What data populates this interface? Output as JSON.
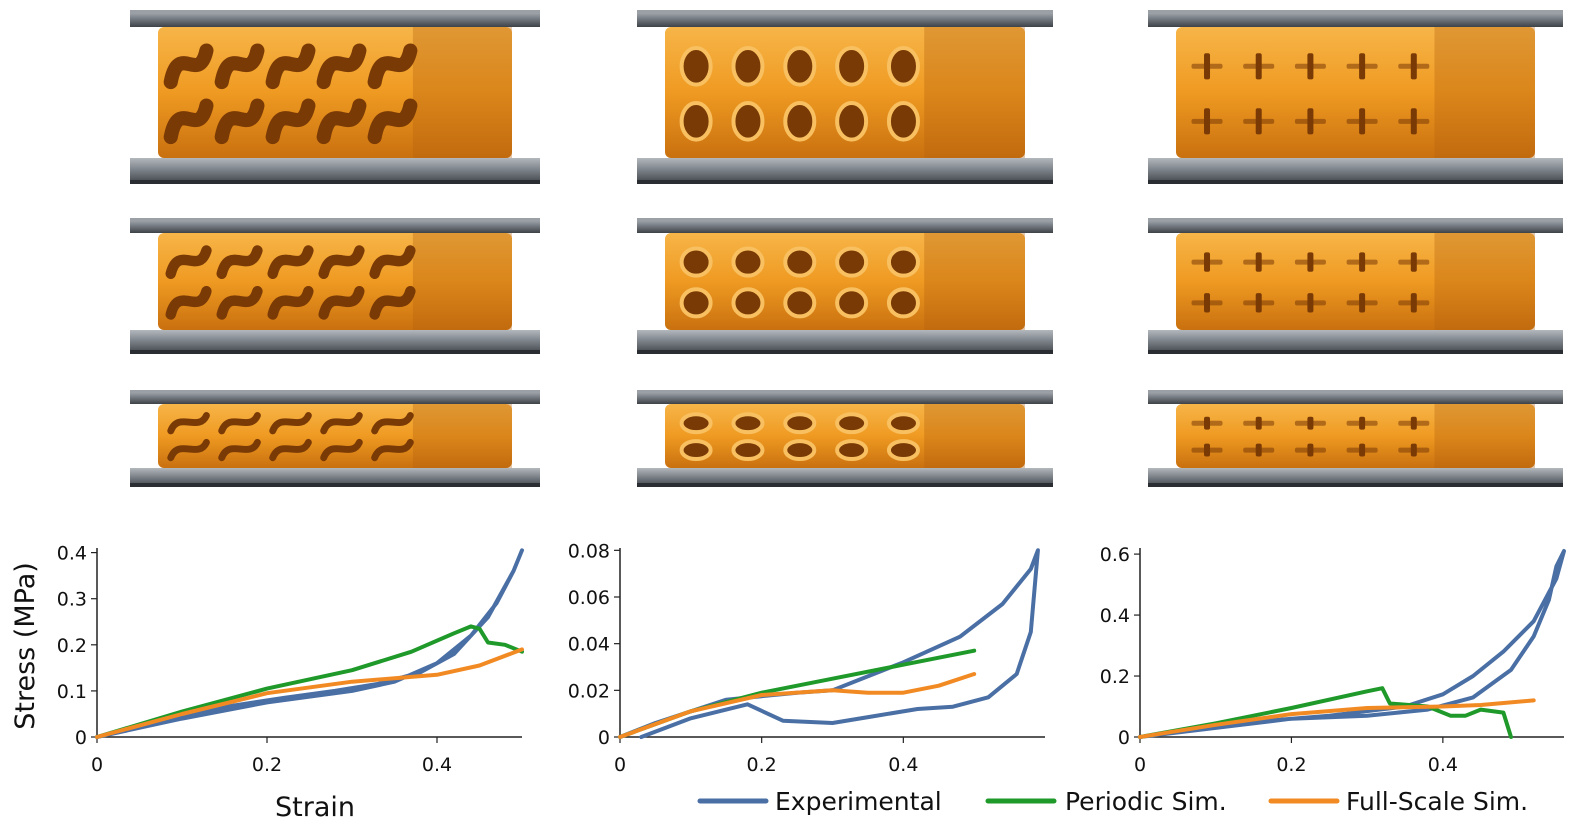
{
  "figure": {
    "ylabel": "Stress (MPa)",
    "xlabel": "Strain"
  },
  "legend": {
    "items": [
      {
        "label": "Experimental",
        "color": "#4a6fa5"
      },
      {
        "label": "Periodic Sim.",
        "color": "#1f9a2a"
      },
      {
        "label": "Full-Scale Sim.",
        "color": "#f28a24"
      }
    ]
  },
  "specimens": [
    {
      "name": "twisted-lattice",
      "pattern": "twist",
      "stages": [
        "uncompressed",
        "mid-compression",
        "fully-compressed"
      ]
    },
    {
      "name": "hole-lattice",
      "pattern": "holes",
      "stages": [
        "uncompressed",
        "mid-compression",
        "fully-compressed"
      ]
    },
    {
      "name": "cross-lattice",
      "pattern": "cross",
      "stages": [
        "uncompressed",
        "mid-compression",
        "fully-compressed"
      ]
    }
  ],
  "colors": {
    "plate": "#5a5f66",
    "plate_top": "#9aa0a6",
    "material": "#f2a22c",
    "material_dark": "#b5620e",
    "hole": "#7a3a05"
  },
  "chart_data": [
    {
      "type": "line",
      "title": "",
      "xlabel": "Strain",
      "ylabel": "Stress (MPa)",
      "xlim": [
        0,
        0.5
      ],
      "ylim": [
        0,
        0.41
      ],
      "xticks": [
        0,
        0.2,
        0.4
      ],
      "xtick_labels": [
        "0",
        "0.2",
        "0.4"
      ],
      "yticks": [
        0,
        0.1,
        0.2,
        0.3,
        0.4
      ],
      "ytick_labels": [
        "0",
        "0.1",
        "0.2",
        "0.3",
        "0.4"
      ],
      "series": [
        {
          "name": "Experimental",
          "x": [
            0,
            0.1,
            0.2,
            0.3,
            0.35,
            0.4,
            0.44,
            0.47,
            0.49,
            0.5,
            0.49,
            0.46,
            0.42,
            0.38,
            0.33,
            0.28,
            0.22,
            0.15,
            0.08,
            0
          ],
          "y": [
            0,
            0.04,
            0.075,
            0.1,
            0.12,
            0.16,
            0.22,
            0.29,
            0.36,
            0.405,
            0.36,
            0.26,
            0.18,
            0.14,
            0.115,
            0.1,
            0.085,
            0.065,
            0.035,
            0
          ]
        },
        {
          "name": "Periodic Sim.",
          "x": [
            0,
            0.1,
            0.2,
            0.3,
            0.37,
            0.42,
            0.44,
            0.45,
            0.46,
            0.48,
            0.5
          ],
          "y": [
            0,
            0.055,
            0.105,
            0.145,
            0.185,
            0.225,
            0.24,
            0.235,
            0.205,
            0.2,
            0.185
          ]
        },
        {
          "name": "Full-Scale Sim.",
          "x": [
            0,
            0.1,
            0.2,
            0.3,
            0.4,
            0.45,
            0.5
          ],
          "y": [
            0,
            0.05,
            0.095,
            0.12,
            0.135,
            0.155,
            0.19
          ]
        }
      ]
    },
    {
      "type": "line",
      "title": "",
      "xlabel": "",
      "ylabel": "",
      "xlim": [
        0,
        0.6
      ],
      "ylim": [
        0,
        0.081
      ],
      "xticks": [
        0,
        0.2,
        0.4
      ],
      "xtick_labels": [
        "0",
        "0.2",
        "0.4"
      ],
      "yticks": [
        0,
        0.02,
        0.04,
        0.06,
        0.08
      ],
      "ytick_labels": [
        "0",
        "0.02",
        "0.04",
        "0.06",
        "0.08"
      ],
      "series": [
        {
          "name": "Experimental",
          "x": [
            0.03,
            0.1,
            0.18,
            0.23,
            0.3,
            0.36,
            0.42,
            0.47,
            0.52,
            0.56,
            0.58,
            0.59,
            0.58,
            0.54,
            0.48,
            0.4,
            0.3,
            0.25,
            0.15,
            0.05,
            0
          ],
          "y": [
            0,
            0.008,
            0.014,
            0.007,
            0.006,
            0.009,
            0.012,
            0.013,
            0.017,
            0.027,
            0.045,
            0.08,
            0.072,
            0.057,
            0.043,
            0.032,
            0.02,
            0.019,
            0.016,
            0.006,
            0
          ]
        },
        {
          "name": "Periodic Sim.",
          "x": [
            0,
            0.1,
            0.2,
            0.3,
            0.4,
            0.5
          ],
          "y": [
            0,
            0.011,
            0.019,
            0.025,
            0.031,
            0.037
          ]
        },
        {
          "name": "Full-Scale Sim.",
          "x": [
            0,
            0.1,
            0.2,
            0.3,
            0.35,
            0.4,
            0.45,
            0.5
          ],
          "y": [
            0,
            0.011,
            0.018,
            0.02,
            0.019,
            0.019,
            0.022,
            0.027
          ]
        }
      ]
    },
    {
      "type": "line",
      "title": "",
      "xlabel": "",
      "ylabel": "",
      "xlim": [
        0,
        0.56
      ],
      "ylim": [
        0,
        0.62
      ],
      "xticks": [
        0,
        0.2,
        0.4
      ],
      "xtick_labels": [
        "0",
        "0.2",
        "0.4"
      ],
      "yticks": [
        0,
        0.2,
        0.4,
        0.6
      ],
      "ytick_labels": [
        "0",
        "0.2",
        "0.4",
        "0.6"
      ],
      "series": [
        {
          "name": "Experimental",
          "x": [
            0,
            0.1,
            0.2,
            0.3,
            0.38,
            0.44,
            0.49,
            0.52,
            0.54,
            0.55,
            0.56,
            0.55,
            0.52,
            0.48,
            0.44,
            0.4,
            0.35,
            0.25,
            0.15,
            0
          ],
          "y": [
            0,
            0.03,
            0.06,
            0.07,
            0.09,
            0.13,
            0.22,
            0.33,
            0.45,
            0.56,
            0.61,
            0.52,
            0.38,
            0.28,
            0.2,
            0.14,
            0.1,
            0.07,
            0.05,
            0
          ]
        },
        {
          "name": "Periodic Sim.",
          "x": [
            0,
            0.1,
            0.2,
            0.3,
            0.32,
            0.33,
            0.38,
            0.41,
            0.43,
            0.45,
            0.48,
            0.49
          ],
          "y": [
            0,
            0.045,
            0.095,
            0.15,
            0.16,
            0.11,
            0.1,
            0.07,
            0.07,
            0.09,
            0.08,
            0
          ]
        },
        {
          "name": "Full-Scale Sim.",
          "x": [
            0,
            0.1,
            0.2,
            0.3,
            0.4,
            0.45,
            0.52
          ],
          "y": [
            0,
            0.04,
            0.075,
            0.095,
            0.1,
            0.105,
            0.12
          ]
        }
      ]
    }
  ]
}
